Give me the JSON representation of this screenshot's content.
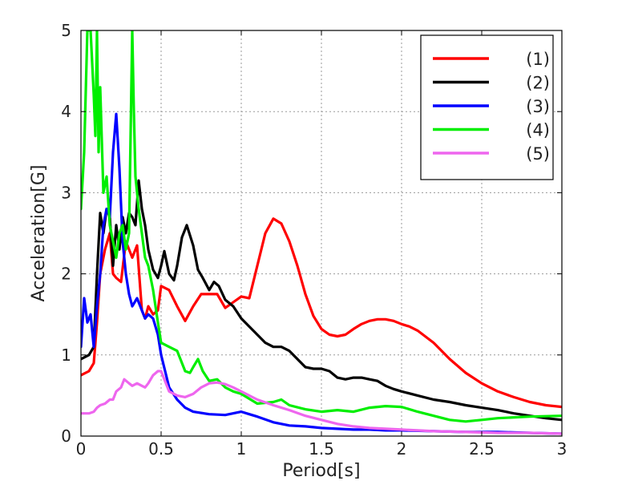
{
  "chart_data": {
    "type": "line",
    "title": "",
    "xlabel": "Period[s]",
    "ylabel": "Acceleration[G]",
    "xlim": [
      0,
      3
    ],
    "ylim": [
      0,
      5
    ],
    "xticks": [
      0,
      0.5,
      1,
      1.5,
      2,
      2.5,
      3
    ],
    "xtick_labels": [
      "0",
      "0.5",
      "1",
      "1.5",
      "2",
      "2.5",
      "3"
    ],
    "yticks": [
      0,
      1,
      2,
      3,
      4,
      5
    ],
    "ytick_labels": [
      "0",
      "1",
      "2",
      "3",
      "4",
      "5"
    ],
    "grid": true,
    "legend_position": "top-right",
    "series": [
      {
        "name": "(1)",
        "color": "#ff0000",
        "x": [
          0,
          0.05,
          0.08,
          0.1,
          0.12,
          0.15,
          0.18,
          0.2,
          0.22,
          0.25,
          0.28,
          0.3,
          0.32,
          0.35,
          0.38,
          0.4,
          0.42,
          0.45,
          0.48,
          0.5,
          0.55,
          0.6,
          0.65,
          0.7,
          0.75,
          0.8,
          0.85,
          0.9,
          0.95,
          1.0,
          1.05,
          1.1,
          1.15,
          1.2,
          1.25,
          1.3,
          1.35,
          1.4,
          1.45,
          1.5,
          1.55,
          1.6,
          1.65,
          1.7,
          1.75,
          1.8,
          1.85,
          1.9,
          1.95,
          2.0,
          2.05,
          2.1,
          2.2,
          2.3,
          2.4,
          2.5,
          2.6,
          2.7,
          2.8,
          2.9,
          3.0
        ],
        "y": [
          0.75,
          0.8,
          0.9,
          1.4,
          2.0,
          2.3,
          2.5,
          2.0,
          1.95,
          1.9,
          2.4,
          2.3,
          2.2,
          2.35,
          1.55,
          1.45,
          1.6,
          1.5,
          1.55,
          1.85,
          1.8,
          1.6,
          1.42,
          1.6,
          1.75,
          1.75,
          1.75,
          1.58,
          1.65,
          1.72,
          1.7,
          2.1,
          2.5,
          2.68,
          2.62,
          2.4,
          2.1,
          1.75,
          1.48,
          1.32,
          1.25,
          1.23,
          1.25,
          1.32,
          1.38,
          1.42,
          1.44,
          1.44,
          1.42,
          1.38,
          1.35,
          1.3,
          1.15,
          0.95,
          0.78,
          0.65,
          0.55,
          0.48,
          0.42,
          0.38,
          0.36
        ]
      },
      {
        "name": "(2)",
        "color": "#000000",
        "x": [
          0,
          0.05,
          0.08,
          0.1,
          0.12,
          0.14,
          0.16,
          0.18,
          0.2,
          0.22,
          0.24,
          0.26,
          0.28,
          0.3,
          0.32,
          0.34,
          0.36,
          0.38,
          0.4,
          0.42,
          0.45,
          0.48,
          0.5,
          0.52,
          0.55,
          0.58,
          0.6,
          0.63,
          0.66,
          0.7,
          0.73,
          0.76,
          0.8,
          0.83,
          0.86,
          0.9,
          0.95,
          1.0,
          1.1,
          1.15,
          1.2,
          1.25,
          1.3,
          1.35,
          1.4,
          1.45,
          1.5,
          1.55,
          1.6,
          1.65,
          1.7,
          1.75,
          1.8,
          1.85,
          1.9,
          1.95,
          2.0,
          2.1,
          2.2,
          2.3,
          2.4,
          2.5,
          2.6,
          2.7,
          2.8,
          2.9,
          3.0
        ],
        "y": [
          0.95,
          1.0,
          1.1,
          2.0,
          2.75,
          2.5,
          2.8,
          2.7,
          2.1,
          2.6,
          2.3,
          2.7,
          2.5,
          2.75,
          2.7,
          2.6,
          3.15,
          2.8,
          2.6,
          2.3,
          2.05,
          1.95,
          2.1,
          2.28,
          2.0,
          1.92,
          2.1,
          2.45,
          2.6,
          2.35,
          2.05,
          1.95,
          1.8,
          1.9,
          1.85,
          1.68,
          1.6,
          1.45,
          1.25,
          1.15,
          1.1,
          1.1,
          1.05,
          0.95,
          0.85,
          0.83,
          0.83,
          0.8,
          0.72,
          0.7,
          0.72,
          0.72,
          0.7,
          0.68,
          0.62,
          0.58,
          0.55,
          0.5,
          0.45,
          0.42,
          0.38,
          0.35,
          0.32,
          0.28,
          0.25,
          0.22,
          0.2
        ]
      },
      {
        "name": "(3)",
        "color": "#0000ff",
        "x": [
          0,
          0.02,
          0.04,
          0.06,
          0.08,
          0.1,
          0.12,
          0.14,
          0.16,
          0.18,
          0.2,
          0.22,
          0.24,
          0.26,
          0.28,
          0.3,
          0.32,
          0.35,
          0.38,
          0.4,
          0.42,
          0.45,
          0.48,
          0.5,
          0.55,
          0.6,
          0.65,
          0.7,
          0.8,
          0.9,
          1.0,
          1.05,
          1.1,
          1.2,
          1.3,
          1.4,
          1.5,
          1.6,
          1.7,
          1.8,
          1.9,
          2.0,
          2.2,
          2.4,
          2.6,
          2.8,
          3.0
        ],
        "y": [
          1.1,
          1.7,
          1.4,
          1.5,
          1.1,
          1.6,
          2.0,
          2.6,
          2.8,
          2.7,
          3.5,
          3.97,
          3.3,
          2.4,
          2.0,
          1.75,
          1.6,
          1.7,
          1.55,
          1.45,
          1.5,
          1.45,
          1.25,
          1.0,
          0.6,
          0.45,
          0.35,
          0.3,
          0.27,
          0.26,
          0.3,
          0.27,
          0.24,
          0.17,
          0.13,
          0.12,
          0.1,
          0.09,
          0.08,
          0.08,
          0.07,
          0.07,
          0.06,
          0.05,
          0.05,
          0.04,
          0.03
        ]
      },
      {
        "name": "(4)",
        "color": "#00ee00",
        "x": [
          0,
          0.02,
          0.04,
          0.06,
          0.08,
          0.09,
          0.1,
          0.11,
          0.12,
          0.14,
          0.16,
          0.18,
          0.2,
          0.22,
          0.24,
          0.26,
          0.28,
          0.3,
          0.32,
          0.33,
          0.34,
          0.36,
          0.38,
          0.4,
          0.42,
          0.45,
          0.48,
          0.5,
          0.55,
          0.6,
          0.65,
          0.68,
          0.7,
          0.73,
          0.76,
          0.8,
          0.85,
          0.9,
          0.95,
          1.0,
          1.1,
          1.2,
          1.25,
          1.3,
          1.4,
          1.5,
          1.6,
          1.7,
          1.8,
          1.9,
          2.0,
          2.1,
          2.2,
          2.3,
          2.4,
          2.5,
          2.6,
          2.8,
          3.0
        ],
        "y": [
          2.8,
          3.5,
          5.0,
          5.0,
          4.2,
          3.7,
          5.0,
          3.5,
          4.3,
          3.0,
          3.2,
          2.6,
          2.4,
          2.2,
          2.5,
          2.6,
          2.3,
          2.5,
          5.0,
          4.0,
          3.2,
          2.8,
          2.5,
          2.2,
          2.1,
          1.8,
          1.4,
          1.15,
          1.1,
          1.05,
          0.8,
          0.78,
          0.85,
          0.95,
          0.8,
          0.68,
          0.7,
          0.6,
          0.55,
          0.52,
          0.4,
          0.42,
          0.45,
          0.38,
          0.33,
          0.3,
          0.32,
          0.3,
          0.35,
          0.37,
          0.36,
          0.3,
          0.25,
          0.2,
          0.18,
          0.2,
          0.22,
          0.24,
          0.25
        ]
      },
      {
        "name": "(5)",
        "color": "#ee66ee",
        "x": [
          0,
          0.05,
          0.08,
          0.1,
          0.12,
          0.15,
          0.18,
          0.2,
          0.22,
          0.25,
          0.27,
          0.3,
          0.32,
          0.35,
          0.38,
          0.4,
          0.42,
          0.45,
          0.48,
          0.5,
          0.52,
          0.55,
          0.6,
          0.65,
          0.7,
          0.75,
          0.8,
          0.85,
          0.9,
          0.95,
          1.0,
          1.05,
          1.1,
          1.2,
          1.3,
          1.4,
          1.5,
          1.6,
          1.7,
          1.8,
          2.0,
          2.2,
          2.4,
          2.6,
          2.8,
          3.0
        ],
        "y": [
          0.28,
          0.28,
          0.3,
          0.35,
          0.38,
          0.4,
          0.45,
          0.45,
          0.55,
          0.6,
          0.7,
          0.65,
          0.62,
          0.65,
          0.62,
          0.6,
          0.65,
          0.75,
          0.8,
          0.8,
          0.7,
          0.55,
          0.5,
          0.48,
          0.52,
          0.6,
          0.65,
          0.66,
          0.64,
          0.6,
          0.55,
          0.5,
          0.45,
          0.38,
          0.32,
          0.25,
          0.2,
          0.15,
          0.12,
          0.1,
          0.08,
          0.06,
          0.05,
          0.04,
          0.04,
          0.03
        ]
      }
    ]
  }
}
